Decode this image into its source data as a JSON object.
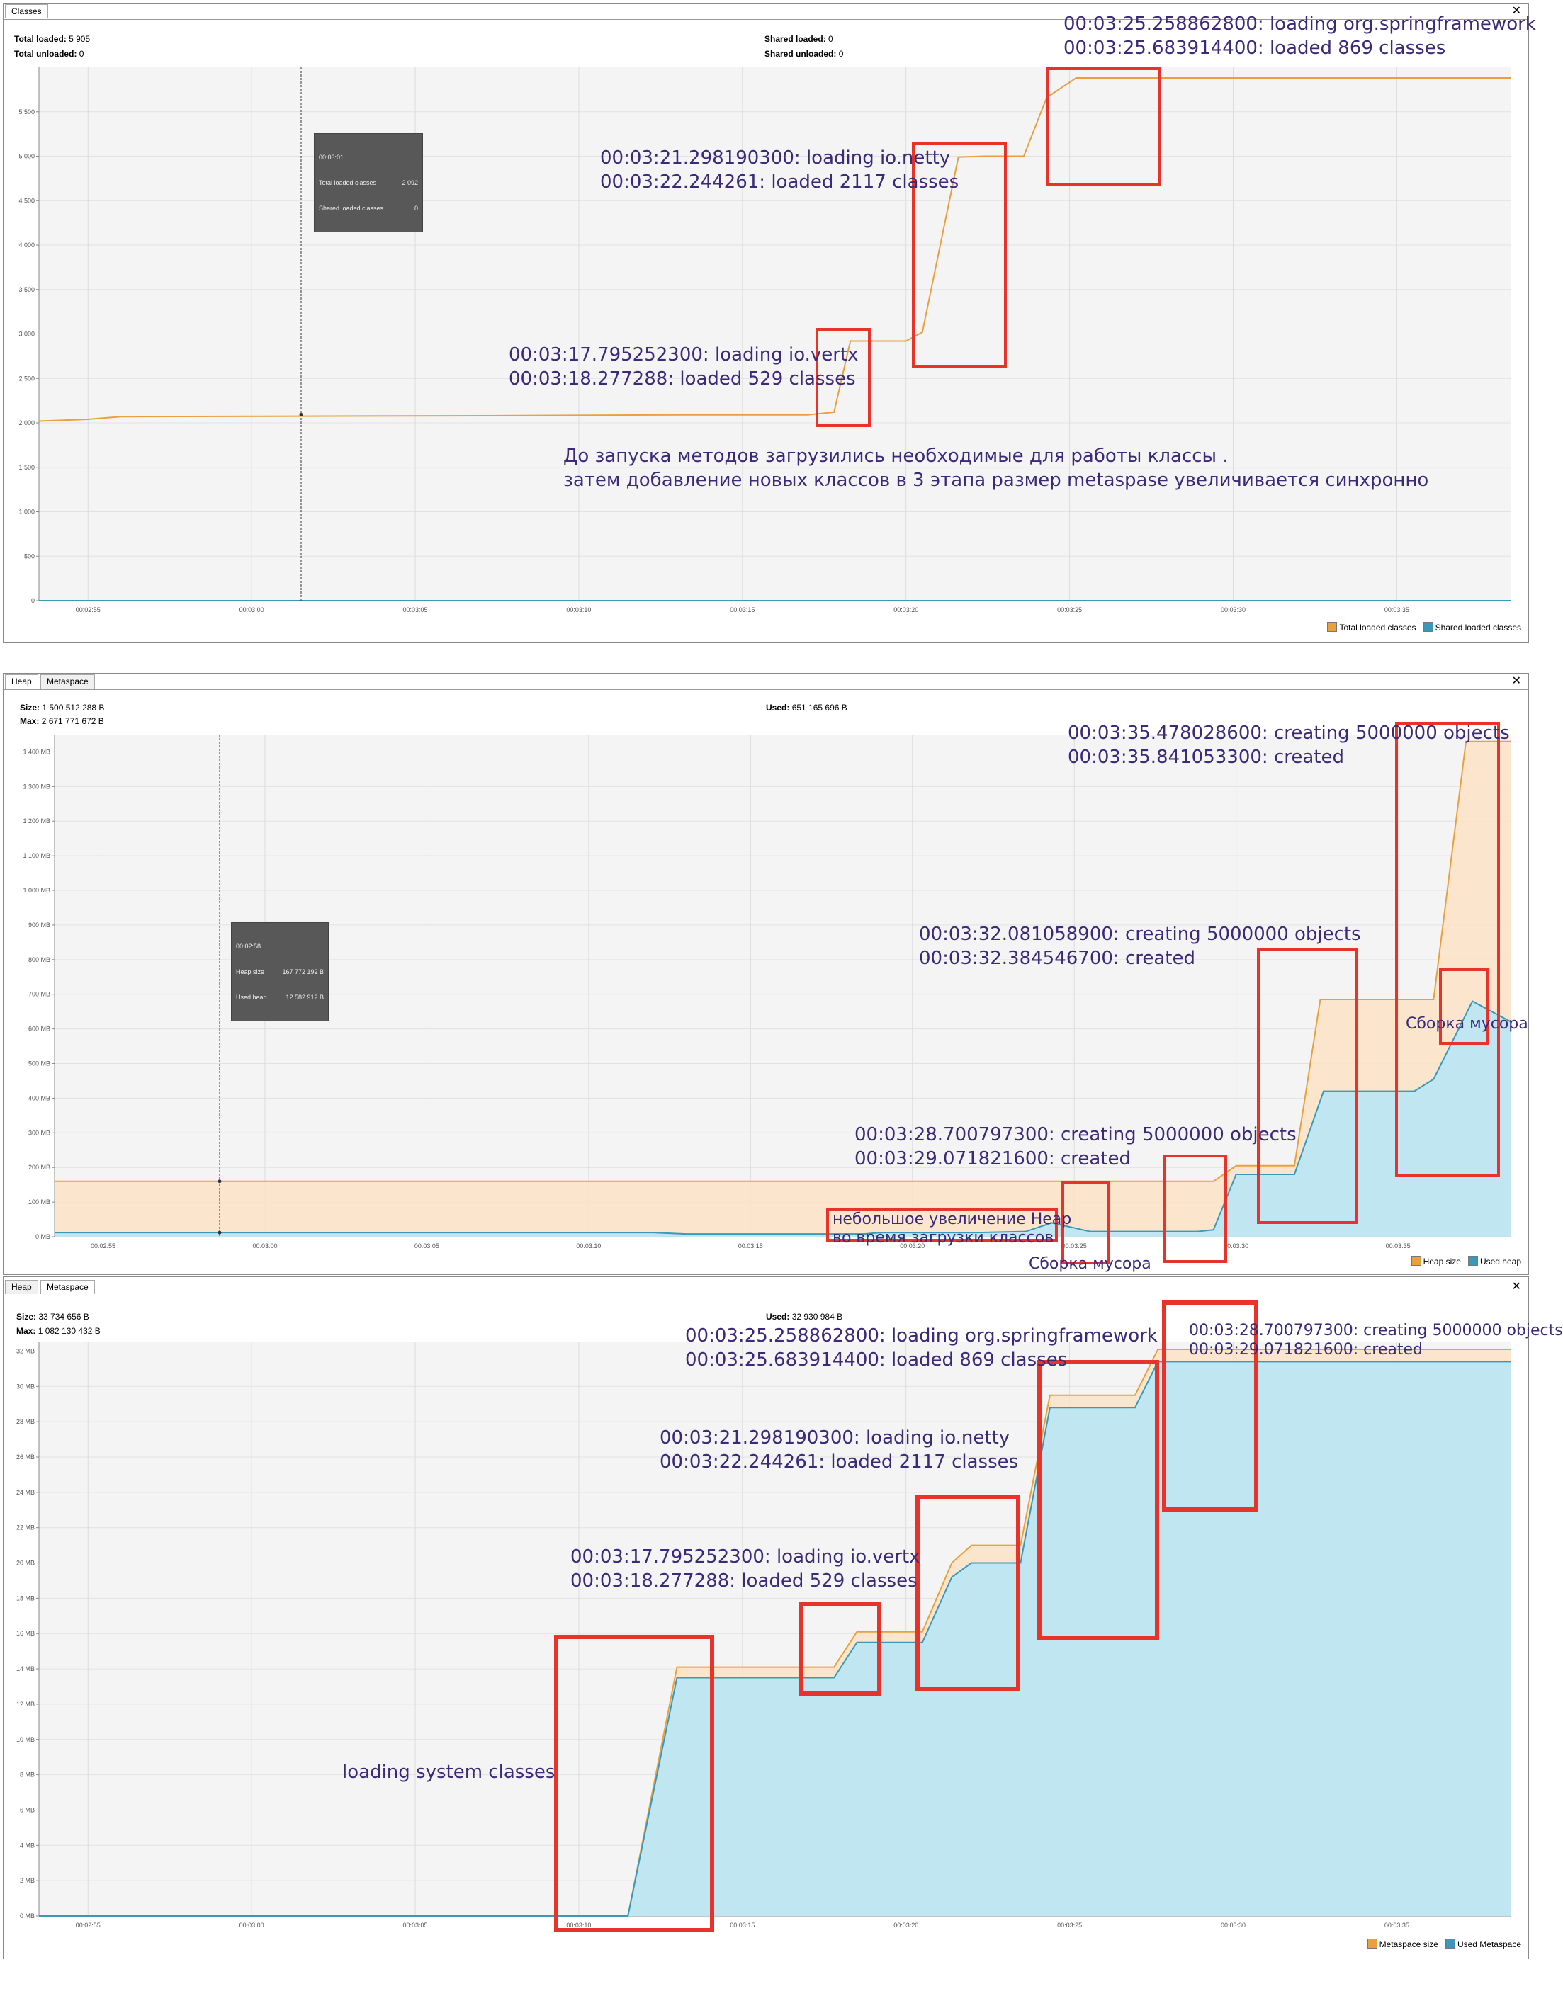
{
  "classes": {
    "tab": "Classes",
    "total_loaded_label": "Total loaded:",
    "total_loaded": "5 905",
    "total_unloaded_label": "Total unloaded:",
    "total_unloaded": "0",
    "shared_loaded_label": "Shared loaded:",
    "shared_loaded": "0",
    "shared_unloaded_label": "Shared unloaded:",
    "shared_unloaded": "0",
    "tooltip": {
      "time": "00:03:01",
      "row1_label": "Total loaded classes",
      "row1_value": "2 092",
      "row2_label": "Shared loaded classes",
      "row2_value": "0"
    },
    "legend": [
      "Total loaded classes",
      "Shared loaded classes"
    ],
    "annotations": {
      "vertx_1": "00:03:17.795252300: loading io.vertx",
      "vertx_2": "00:03:18.277288: loaded 529 classes",
      "netty_1": "00:03:21.298190300: loading io.netty",
      "netty_2": "00:03:22.244261: loaded 2117 classes",
      "spring_1": "00:03:25.258862800: loading org.springframework",
      "spring_2": "00:03:25.683914400: loaded 869 classes",
      "note_1": "До запуска методов загрузились необходимые для работы классы .",
      "note_2": "затем добавление новых классов в 3 этапа размер metaspase увеличивается синхронно"
    }
  },
  "heap": {
    "tabs": [
      "Heap",
      "Metaspace"
    ],
    "size_label": "Size:",
    "size": "1 500 512 288 B",
    "max_label": "Max:",
    "max": "2 671 771 672 B",
    "used_label": "Used:",
    "used": "651 165 696 B",
    "tooltip": {
      "time": "00:02:58",
      "row1_label": "Heap size",
      "row1_value": "167 772 192 B",
      "row2_label": "Used heap",
      "row2_value": "12 582 912 B"
    },
    "legend": [
      "Heap size",
      "Used heap"
    ],
    "annotations": {
      "c1_1": "00:03:28.700797300: creating 5000000 objects",
      "c1_2": "00:03:29.071821600: created",
      "c2_1": "00:03:32.081058900: creating 5000000 objects",
      "c2_2": "00:03:32.384546700: created",
      "c3_1": "00:03:35.478028600: creating 5000000 objects",
      "c3_2": "00:03:35.841053300: created",
      "gc_1": "Сборка мусора",
      "gc_2": "Сборка мусора",
      "small_1": "небольшое увеличение Heap",
      "small_2": "во время загрузки классов"
    }
  },
  "metaspace": {
    "tabs": [
      "Heap",
      "Metaspace"
    ],
    "size_label": "Size:",
    "size": "33 734 656 B",
    "max_label": "Max:",
    "max": "1 082 130 432 B",
    "used_label": "Used:",
    "used": "32 930 984 B",
    "legend": [
      "Metaspace size",
      "Used Metaspace"
    ],
    "annotations": {
      "system": "loading system classes",
      "vertx_1": "00:03:17.795252300: loading io.vertx",
      "vertx_2": "00:03:18.277288: loaded 529 classes",
      "netty_1": "00:03:21.298190300: loading io.netty",
      "netty_2": "00:03:22.244261: loaded 2117 classes",
      "spring_1": "00:03:25.258862800: loading org.springframework",
      "spring_2": "00:03:25.683914400: loaded 869 classes",
      "c1_1": "00:03:28.700797300: creating 5000000 objects",
      "c1_2": "00:03:29.071821600: created"
    }
  },
  "colors": {
    "orange": "#e8a040",
    "orange_fill": "#fbe3c6",
    "blue": "#3a98b8",
    "blue_fill": "#b8e6f5",
    "red_box": "#e8332a",
    "annotation": "#3a2a78"
  },
  "chart_data": [
    {
      "type": "line",
      "ylim": [
        0,
        6000
      ],
      "yticks": [
        "0",
        "500",
        "1 000",
        "1 500",
        "2 000",
        "2 500",
        "3 000",
        "3 500",
        "4 000",
        "4 500",
        "5 000",
        "5 500"
      ],
      "xticks": [
        "00:02:55",
        "00:03:00",
        "00:03:05",
        "00:03:10",
        "00:03:15",
        "00:03:20",
        "00:03:25",
        "00:03:30",
        "00:03:35"
      ],
      "xlim": [
        173.5,
        218.5
      ],
      "series": [
        {
          "name": "Total loaded classes",
          "x": [
            173.5,
            175,
            176,
            187,
            193,
            197,
            197.8,
            198.3,
            200,
            200.5,
            201.6,
            202.4,
            203.6,
            204.3,
            205.2,
            206,
            218.5
          ],
          "y": [
            2020,
            2040,
            2070,
            2080,
            2090,
            2090,
            2120,
            2920,
            2920,
            3020,
            4990,
            5000,
            5000,
            5660,
            5880,
            5880,
            5880
          ]
        },
        {
          "name": "Shared loaded classes",
          "x": [
            173.5,
            218.5
          ],
          "y": [
            0,
            0
          ]
        }
      ]
    },
    {
      "type": "area",
      "ylim": [
        0,
        1450
      ],
      "yticks": [
        "0 MB",
        "100 MB",
        "200 MB",
        "300 MB",
        "400 MB",
        "500 MB",
        "600 MB",
        "700 MB",
        "800 MB",
        "900 MB",
        "1 000 MB",
        "1 100 MB",
        "1 200 MB",
        "1 300 MB",
        "1 400 MB"
      ],
      "xticks": [
        "00:02:55",
        "00:03:00",
        "00:03:05",
        "00:03:10",
        "00:03:15",
        "00:03:20",
        "00:03:25",
        "00:03:30",
        "00:03:35"
      ],
      "xlim": [
        173.5,
        218.5
      ],
      "series": [
        {
          "name": "Heap size",
          "x": [
            173.5,
            209.3,
            210,
            211.8,
            212.6,
            215.6,
            216.1,
            217.1,
            218.5
          ],
          "y": [
            160,
            160,
            205,
            205,
            685,
            685,
            685,
            1430,
            1430
          ]
        },
        {
          "name": "Used heap",
          "x": [
            173.5,
            192,
            193,
            196,
            198.5,
            199,
            201,
            202,
            203.5,
            204.3,
            205.5,
            206.2,
            208.8,
            209.3,
            210,
            211.8,
            212.7,
            215.5,
            216.1,
            217.3,
            218.5
          ],
          "y": [
            12,
            12,
            8,
            8,
            8,
            12,
            12,
            12,
            15,
            40,
            15,
            15,
            15,
            20,
            180,
            180,
            420,
            420,
            455,
            680,
            620
          ]
        }
      ]
    },
    {
      "type": "area",
      "ylim": [
        0,
        32.5
      ],
      "yticks": [
        "0 MB",
        "2 MB",
        "4 MB",
        "6 MB",
        "8 MB",
        "10 MB",
        "12 MB",
        "14 MB",
        "16 MB",
        "18 MB",
        "20 MB",
        "22 MB",
        "24 MB",
        "26 MB",
        "28 MB",
        "30 MB",
        "32 MB"
      ],
      "xticks": [
        "00:02:55",
        "00:03:00",
        "00:03:05",
        "00:03:10",
        "00:03:15",
        "00:03:20",
        "00:03:25",
        "00:03:30",
        "00:03:35"
      ],
      "xlim": [
        173.5,
        218.5
      ],
      "series": [
        {
          "name": "Metaspace size",
          "x": [
            173.5,
            191.5,
            193,
            197.8,
            198.5,
            200.5,
            201.4,
            202,
            203.5,
            204.4,
            207,
            207.7,
            218.5
          ],
          "y": [
            0,
            0,
            14.1,
            14.1,
            16.1,
            16.1,
            20,
            21,
            21,
            29.5,
            29.5,
            32.1,
            32.1
          ]
        },
        {
          "name": "Used Metaspace",
          "x": [
            173.5,
            191.5,
            193,
            197.8,
            198.5,
            200.5,
            201.4,
            202,
            203.5,
            204.4,
            207,
            207.7,
            218.5
          ],
          "y": [
            0,
            0,
            13.5,
            13.5,
            15.5,
            15.5,
            19.2,
            20,
            20,
            28.8,
            28.8,
            31.4,
            31.4
          ]
        }
      ]
    }
  ]
}
